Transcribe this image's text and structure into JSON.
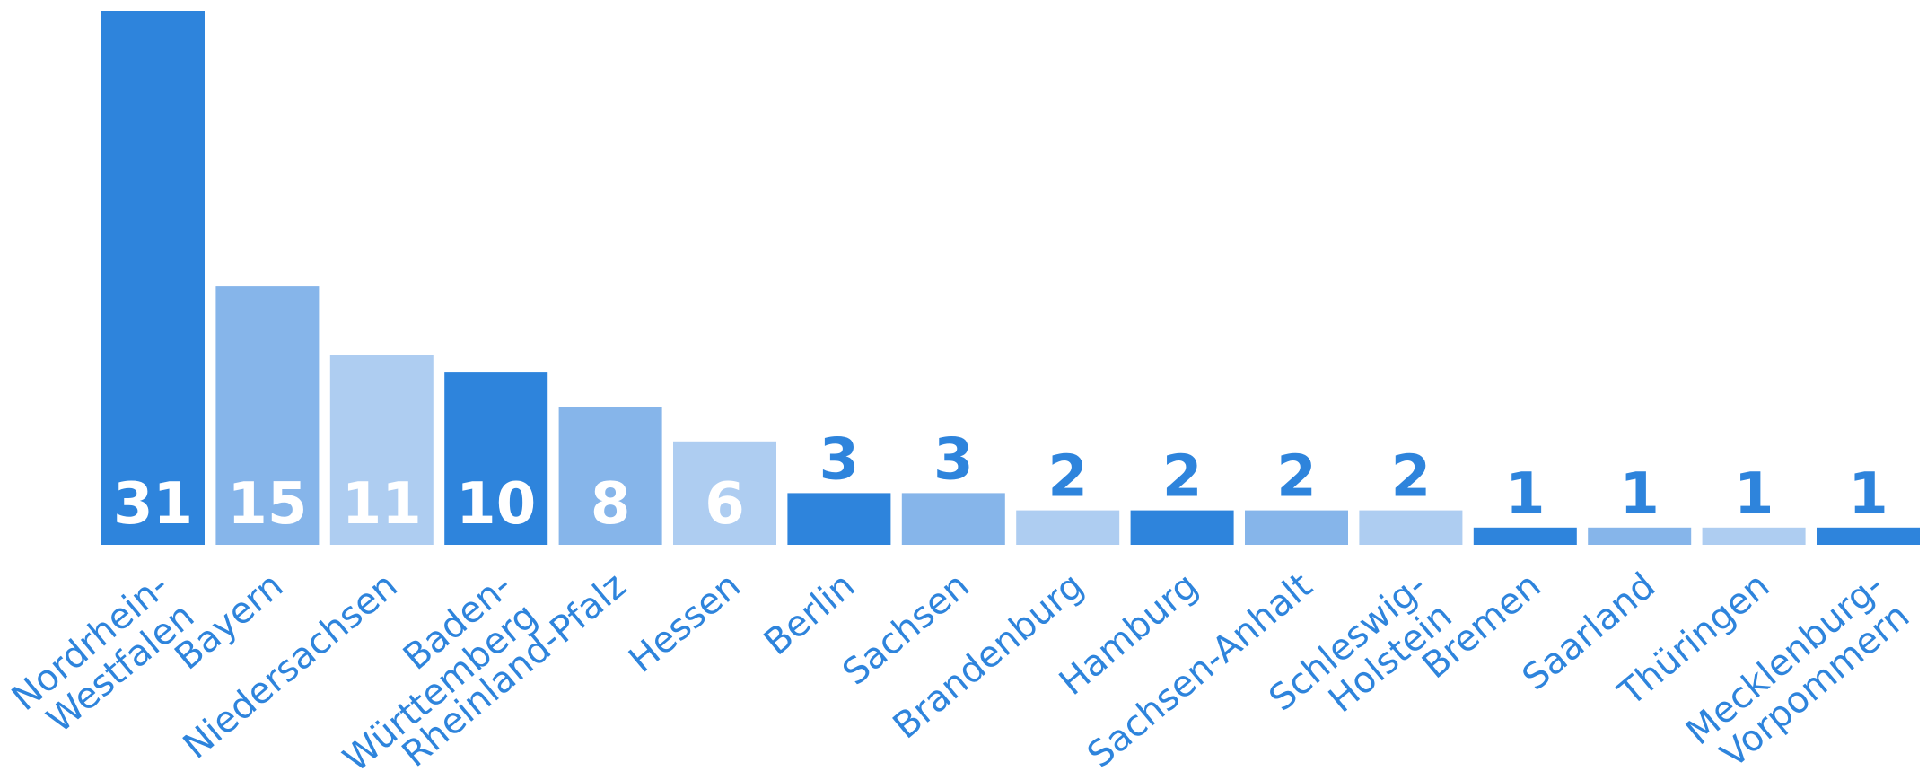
{
  "chart_data": {
    "type": "bar",
    "title": "",
    "xlabel": "",
    "ylabel": "",
    "ylim": [
      0,
      31
    ],
    "grid": false,
    "categories": [
      "Nordrhein-Westfalen",
      "Bayern",
      "Niedersachsen",
      "Baden-Württemberg",
      "Rheinland-Pfalz",
      "Hessen",
      "Berlin",
      "Sachsen",
      "Brandenburg",
      "Hamburg",
      "Sachsen-Anhalt",
      "Schleswig-Holstein",
      "Bremen",
      "Saarland",
      "Thüringen",
      "Mecklenburg-Vorpommern"
    ],
    "category_label_lines": [
      [
        "Nordrhein-",
        "Westfalen"
      ],
      [
        "Bayern"
      ],
      [
        "Niedersachsen"
      ],
      [
        "Baden-",
        "Württemberg"
      ],
      [
        "Rheinland-Pfalz"
      ],
      [
        "Hessen"
      ],
      [
        "Berlin"
      ],
      [
        "Sachsen"
      ],
      [
        "Brandenburg"
      ],
      [
        "Hamburg"
      ],
      [
        "Sachsen-Anhalt"
      ],
      [
        "Schleswig-",
        "Holstein"
      ],
      [
        "Bremen"
      ],
      [
        "Saarland"
      ],
      [
        "Thüringen"
      ],
      [
        "Mecklenburg-",
        "Vorpommern"
      ]
    ],
    "values": [
      31,
      15,
      11,
      10,
      8,
      6,
      3,
      3,
      2,
      2,
      2,
      2,
      1,
      1,
      1,
      1
    ],
    "bar_colors": [
      "#2e84dc",
      "#86b5ea",
      "#aecdf1",
      "#2e84dc",
      "#86b5ea",
      "#aecdf1",
      "#2e84dc",
      "#86b5ea",
      "#aecdf1",
      "#2e84dc",
      "#86b5ea",
      "#aecdf1",
      "#2e84dc",
      "#86b5ea",
      "#aecdf1",
      "#2e84dc"
    ],
    "label_color": "#2e84dc",
    "inside_label_color": "#ffffff"
  }
}
